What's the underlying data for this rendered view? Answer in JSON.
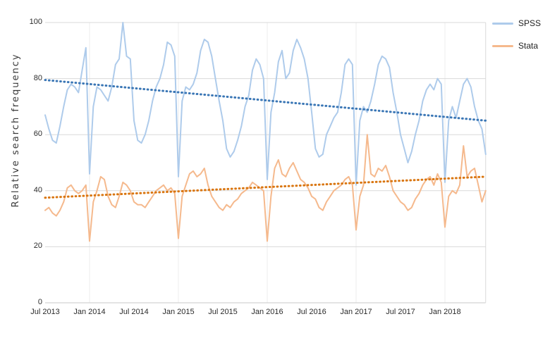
{
  "chart_data": {
    "type": "line",
    "title": "",
    "xlabel": "",
    "ylabel": "Relative search frequency",
    "ylim": [
      0,
      100
    ],
    "y_ticks": [
      0,
      20,
      40,
      60,
      80,
      100
    ],
    "x_tick_labels": [
      "Jul 2013",
      "Jan 2014",
      "Jul 2014",
      "Jan 2015",
      "Jul 2015",
      "Jan 2016",
      "Jul 2016",
      "Jan 2017",
      "Jul 2017",
      "Jan 2018"
    ],
    "x_tick_months": [
      0,
      6,
      12,
      18,
      24,
      30,
      36,
      42,
      48,
      54
    ],
    "x_range_months": [
      0,
      59.5
    ],
    "sampling": "approximately semi-monthly points; month offset from Jul 2013 = index * 0.5",
    "grid": {
      "horizontal": true,
      "vertical_at_year_starts": true
    },
    "legend_position": "top-right",
    "series": [
      {
        "name": "SPSS",
        "color": "#aecbeb",
        "line_width": 2,
        "values": [
          67,
          62,
          58,
          57,
          63,
          70,
          76,
          78,
          77,
          75,
          83,
          91,
          46,
          70,
          77,
          76,
          74,
          72,
          77,
          85,
          87,
          100,
          88,
          87,
          65,
          58,
          57,
          60,
          65,
          72,
          77,
          80,
          85,
          93,
          92,
          88,
          45,
          72,
          77,
          76,
          78,
          82,
          90,
          94,
          93,
          88,
          80,
          72,
          65,
          55,
          52,
          54,
          58,
          63,
          70,
          74,
          83,
          87,
          85,
          80,
          44,
          68,
          75,
          86,
          90,
          80,
          82,
          90,
          94,
          91,
          87,
          80,
          68,
          55,
          52,
          53,
          60,
          63,
          66,
          68,
          75,
          85,
          87,
          85,
          42,
          65,
          70,
          68,
          72,
          78,
          85,
          88,
          87,
          84,
          75,
          68,
          60,
          55,
          50,
          54,
          60,
          65,
          72,
          76,
          78,
          76,
          80,
          78,
          43,
          65,
          70,
          66,
          72,
          78,
          80,
          77,
          70,
          65,
          62,
          53
        ]
      },
      {
        "name": "Stata",
        "color": "#f5b98d",
        "line_width": 2,
        "values": [
          33,
          34,
          32,
          31,
          33,
          36,
          41,
          42,
          40,
          39,
          40,
          42,
          22,
          36,
          40,
          45,
          44,
          38,
          35,
          34,
          38,
          43,
          42,
          40,
          36,
          35,
          35,
          34,
          36,
          38,
          40,
          41,
          42,
          40,
          41,
          39,
          23,
          38,
          42,
          46,
          47,
          45,
          46,
          48,
          42,
          38,
          36,
          34,
          33,
          35,
          34,
          36,
          37,
          39,
          40,
          41,
          43,
          42,
          41,
          40,
          22,
          38,
          48,
          51,
          46,
          45,
          48,
          50,
          47,
          44,
          43,
          41,
          38,
          37,
          34,
          33,
          36,
          38,
          40,
          41,
          42,
          44,
          45,
          42,
          26,
          38,
          42,
          60,
          46,
          45,
          48,
          47,
          49,
          45,
          40,
          38,
          36,
          35,
          33,
          34,
          37,
          39,
          42,
          44,
          45,
          42,
          46,
          43,
          27,
          38,
          40,
          39,
          42,
          56,
          45,
          47,
          48,
          42,
          36,
          40
        ]
      }
    ],
    "trend_lines": [
      {
        "series": "SPSS",
        "style": "dotted",
        "color": "#3a76b5",
        "start_value": 79.5,
        "end_value": 65
      },
      {
        "series": "Stata",
        "style": "dotted",
        "color": "#d9750f",
        "start_value": 37.5,
        "end_value": 45
      }
    ],
    "colors": {
      "grid": "#d9d9d9",
      "year_grid": "#ececec",
      "axis": "#c9c9c9",
      "tick_text": "#2b2b2b"
    }
  }
}
